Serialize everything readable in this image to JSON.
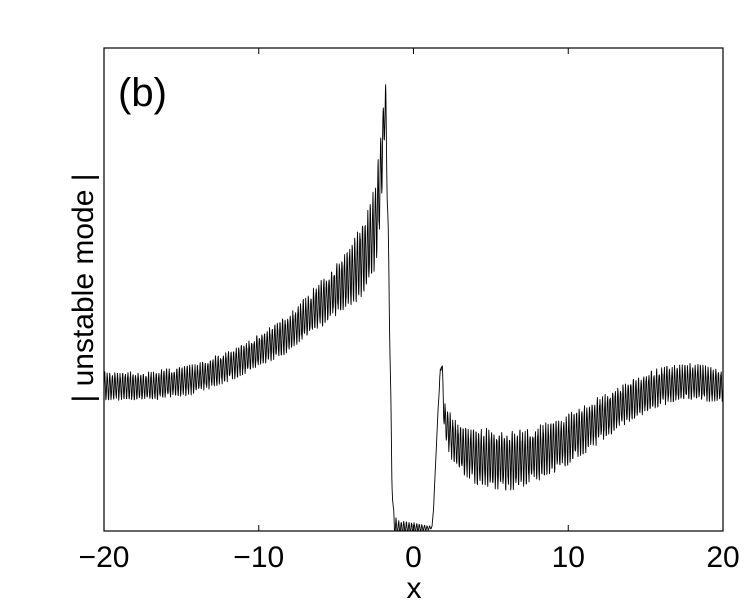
{
  "chart_data": {
    "type": "line",
    "panel_label": "(b)",
    "title": "",
    "xlabel": "x",
    "ylabel": "| unstable mode |",
    "xlim": [
      -20,
      20
    ],
    "ylim": [
      0,
      1
    ],
    "xticks": [
      -20,
      -10,
      0,
      10,
      20
    ],
    "xtick_labels": [
      "−20",
      "−10",
      "0",
      "10",
      "20"
    ],
    "yticks": [],
    "grid": false,
    "legend": "none",
    "line_color": "#000000",
    "envelope": {
      "x": [
        -20,
        -17,
        -14,
        -11,
        -8,
        -6,
        -4,
        -3,
        -2.5,
        -2.2,
        -2.0,
        -1.8,
        -1.6,
        -1.4,
        -1.3,
        -1.2,
        -1.0,
        0,
        1.0,
        1.2,
        1.3,
        1.4,
        1.6,
        1.8,
        2.0,
        2.5,
        3,
        4,
        5,
        6,
        7,
        8,
        10,
        12,
        14,
        16,
        18,
        20
      ],
      "y": [
        0.3,
        0.3,
        0.315,
        0.355,
        0.41,
        0.47,
        0.53,
        0.58,
        0.63,
        0.7,
        0.8,
        0.89,
        0.55,
        0.12,
        0.03,
        0.008,
        0.006,
        0.006,
        0.006,
        0.008,
        0.05,
        0.12,
        0.26,
        0.36,
        0.23,
        0.19,
        0.17,
        0.155,
        0.15,
        0.145,
        0.15,
        0.16,
        0.19,
        0.23,
        0.27,
        0.3,
        0.31,
        0.3
      ]
    },
    "oscillation": {
      "x": [
        -20,
        -10,
        -5,
        -2.2,
        -1.6,
        1.6,
        2,
        5,
        10,
        15,
        20
      ],
      "amplitude": [
        0.025,
        0.028,
        0.045,
        0.08,
        0.02,
        0.0,
        0.035,
        0.055,
        0.045,
        0.035,
        0.03
      ],
      "cycles_per_unit": 6
    }
  }
}
